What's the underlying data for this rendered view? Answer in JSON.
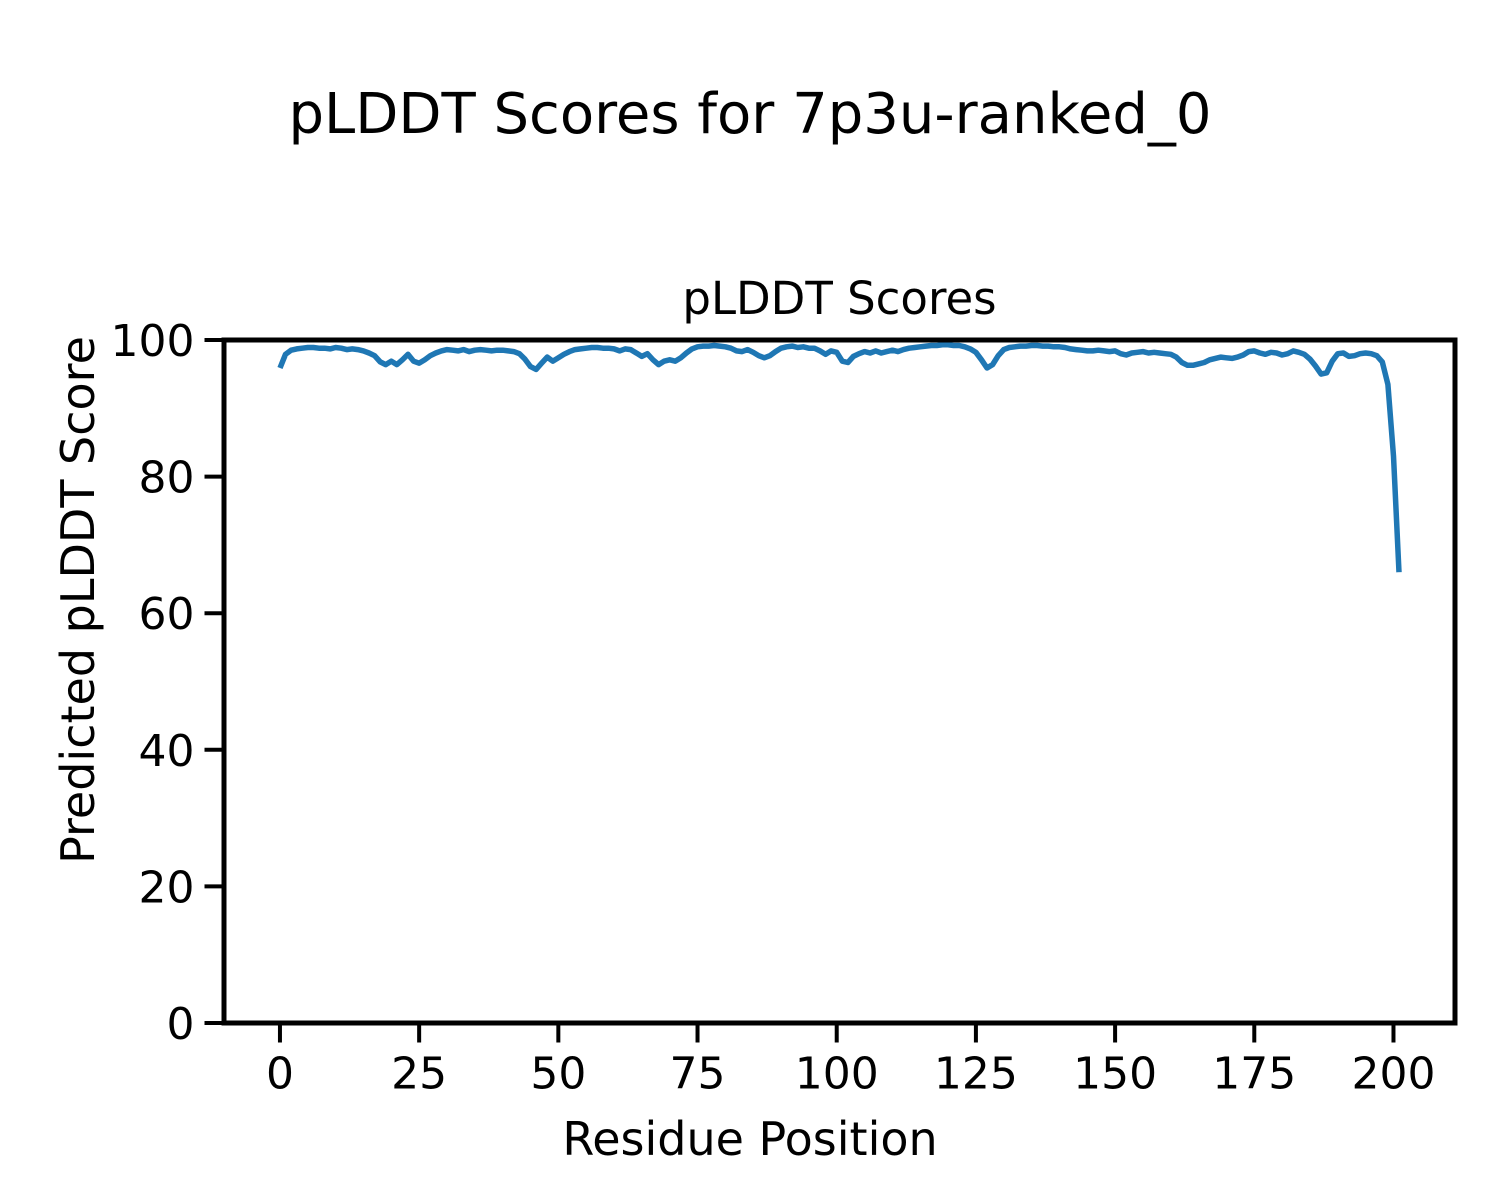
{
  "figure": {
    "suptitle": "pLDDT Scores for 7p3u-ranked_0",
    "background_color": "#ffffff",
    "text_color": "#000000"
  },
  "chart_data": {
    "type": "line",
    "title": "pLDDT Scores",
    "xlabel": "Residue Position",
    "ylabel": "Predicted pLDDT Score",
    "xlim": [
      -10.05,
      211.05
    ],
    "ylim": [
      0,
      100
    ],
    "x_ticks": [
      0,
      25,
      50,
      75,
      100,
      125,
      150,
      175,
      200
    ],
    "x_tick_labels": [
      "0",
      "25",
      "50",
      "75",
      "100",
      "125",
      "150",
      "175",
      "200"
    ],
    "y_ticks": [
      0,
      20,
      40,
      60,
      80,
      100
    ],
    "y_tick_labels": [
      "0",
      "20",
      "40",
      "60",
      "80",
      "100"
    ],
    "grid": false,
    "legend": "none",
    "line_color": "#1f77b4",
    "spine_color": "#000000",
    "series": [
      {
        "name": "pLDDT",
        "x_start": 0,
        "x_step": 1,
        "values": [
          95.9,
          97.9,
          98.5,
          98.7,
          98.8,
          98.9,
          98.9,
          98.8,
          98.8,
          98.7,
          98.9,
          98.8,
          98.6,
          98.7,
          98.6,
          98.4,
          98.1,
          97.7,
          96.8,
          96.4,
          96.9,
          96.4,
          97.1,
          97.9,
          96.9,
          96.6,
          97.1,
          97.7,
          98.1,
          98.4,
          98.6,
          98.5,
          98.4,
          98.6,
          98.3,
          98.5,
          98.6,
          98.5,
          98.4,
          98.5,
          98.5,
          98.4,
          98.3,
          98.0,
          97.2,
          96.1,
          95.7,
          96.6,
          97.5,
          96.9,
          97.4,
          97.9,
          98.3,
          98.6,
          98.7,
          98.8,
          98.9,
          98.9,
          98.8,
          98.8,
          98.7,
          98.4,
          98.7,
          98.6,
          98.1,
          97.6,
          98.0,
          97.1,
          96.4,
          96.9,
          97.1,
          96.9,
          97.4,
          98.1,
          98.7,
          99.0,
          99.1,
          99.1,
          99.2,
          99.1,
          99.0,
          98.8,
          98.4,
          98.3,
          98.6,
          98.2,
          97.7,
          97.4,
          97.7,
          98.3,
          98.8,
          99.0,
          99.1,
          98.9,
          99.0,
          98.8,
          98.8,
          98.4,
          97.9,
          98.4,
          98.2,
          96.9,
          96.7,
          97.6,
          98.0,
          98.3,
          98.1,
          98.4,
          98.1,
          98.3,
          98.5,
          98.3,
          98.6,
          98.8,
          98.9,
          99.0,
          99.1,
          99.2,
          99.2,
          99.3,
          99.3,
          99.2,
          99.2,
          99.0,
          98.7,
          98.2,
          97.1,
          95.9,
          96.4,
          97.7,
          98.6,
          98.9,
          99.0,
          99.1,
          99.1,
          99.2,
          99.2,
          99.1,
          99.1,
          99.0,
          99.0,
          98.9,
          98.7,
          98.6,
          98.5,
          98.4,
          98.4,
          98.5,
          98.4,
          98.3,
          98.4,
          98.0,
          97.8,
          98.1,
          98.2,
          98.3,
          98.1,
          98.2,
          98.1,
          98.0,
          97.9,
          97.5,
          96.7,
          96.3,
          96.3,
          96.5,
          96.7,
          97.1,
          97.3,
          97.5,
          97.4,
          97.3,
          97.5,
          97.8,
          98.3,
          98.4,
          98.1,
          97.9,
          98.2,
          98.1,
          97.8,
          98.0,
          98.4,
          98.2,
          97.9,
          97.2,
          96.2,
          95.0,
          95.2,
          96.9,
          98.0,
          98.1,
          97.6,
          97.7,
          98.0,
          98.1,
          98.0,
          97.7,
          96.8,
          93.5,
          83.0,
          66.0
        ]
      }
    ]
  }
}
